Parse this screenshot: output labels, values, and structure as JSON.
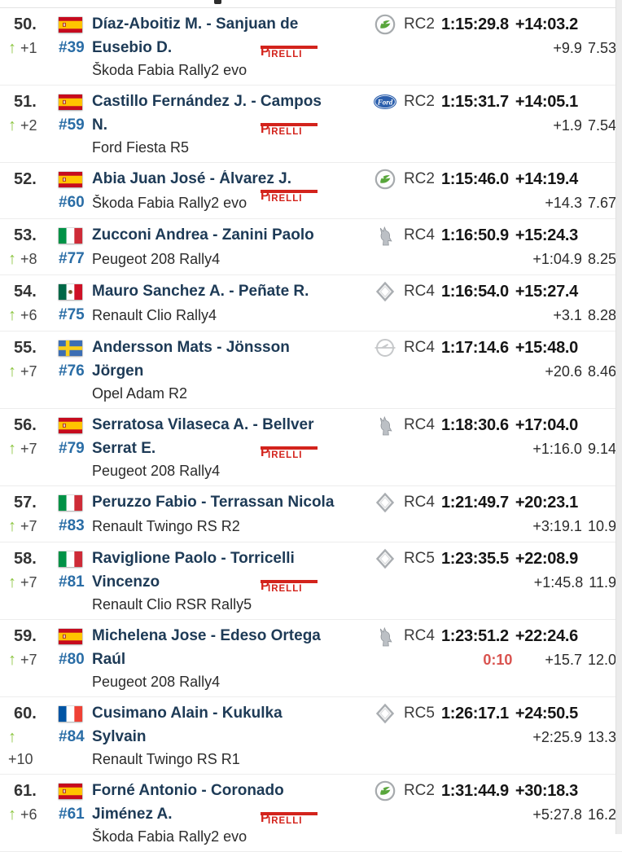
{
  "app": {
    "view": "rally-overall-results-list"
  },
  "icons": {
    "up_arrow": "↑",
    "tyre_brand": "PIRELLI"
  },
  "colors": {
    "driver_name": "#1d3a56",
    "car_number": "#2a6da6",
    "position_up_arrow": "#8cc540",
    "penalty": "#d9534f",
    "pirelli_red": "#d3231c",
    "time_text": "#161616",
    "divider": "#ededed"
  },
  "rows": [
    {
      "pos": "50.",
      "arrow": true,
      "change": "+1",
      "change_line": 2,
      "flag": "es",
      "num": "#39",
      "name1": "Díaz-Aboitiz M. - Sanjuan de",
      "name2": "Eusebio D.",
      "car": "Škoda Fabia Rally2 evo",
      "tyre": "pirelli",
      "make": "skoda",
      "cls": "RC2",
      "time": "1:15:29.8",
      "gap": "+14:03.2",
      "penalty": "",
      "gap_prev": "+9.9",
      "coef": "7.53"
    },
    {
      "pos": "51.",
      "arrow": true,
      "change": "+2",
      "change_line": 2,
      "flag": "es",
      "num": "#59",
      "name1": "Castillo Fernández J. - Campos",
      "name2": "N.",
      "car": "Ford Fiesta R5",
      "tyre": "pirelli",
      "make": "ford",
      "cls": "RC2",
      "time": "1:15:31.7",
      "gap": "+14:05.1",
      "penalty": "",
      "gap_prev": "+1.9",
      "coef": "7.54"
    },
    {
      "pos": "52.",
      "arrow": false,
      "change": "",
      "change_line": 2,
      "flag": "es",
      "num": "#60",
      "name1": "Abia Juan José - Álvarez J.",
      "name2": null,
      "car": "Škoda Fabia Rally2 evo",
      "tyre": "pirelli",
      "make": "skoda",
      "cls": "RC2",
      "time": "1:15:46.0",
      "gap": "+14:19.4",
      "penalty": "",
      "gap_prev": "+14.3",
      "coef": "7.67"
    },
    {
      "pos": "53.",
      "arrow": true,
      "change": "+8",
      "change_line": 2,
      "flag": "it",
      "num": "#77",
      "name1": "Zucconi Andrea - Zanini Paolo",
      "name2": null,
      "car": "Peugeot 208 Rally4",
      "tyre": null,
      "make": "peugeot",
      "cls": "RC4",
      "time": "1:16:50.9",
      "gap": "+15:24.3",
      "penalty": "",
      "gap_prev": "+1:04.9",
      "coef": "8.25"
    },
    {
      "pos": "54.",
      "arrow": true,
      "change": "+6",
      "change_line": 2,
      "flag": "mx",
      "num": "#75",
      "name1": "Mauro Sanchez A. - Peñate R.",
      "name2": null,
      "car": "Renault Clio Rally4",
      "tyre": null,
      "make": "renault",
      "cls": "RC4",
      "time": "1:16:54.0",
      "gap": "+15:27.4",
      "penalty": "",
      "gap_prev": "+3.1",
      "coef": "8.28"
    },
    {
      "pos": "55.",
      "arrow": true,
      "change": "+7",
      "change_line": 2,
      "flag": "se",
      "num": "#76",
      "name1": "Andersson Mats - Jönsson",
      "name2": "Jörgen",
      "car": "Opel Adam R2",
      "tyre": null,
      "make": "opel",
      "cls": "RC4",
      "time": "1:17:14.6",
      "gap": "+15:48.0",
      "penalty": "",
      "gap_prev": "+20.6",
      "coef": "8.46"
    },
    {
      "pos": "56.",
      "arrow": true,
      "change": "+7",
      "change_line": 2,
      "flag": "es",
      "num": "#79",
      "name1": "Serratosa Vilaseca A. - Bellver",
      "name2": "Serrat E.",
      "car": "Peugeot 208 Rally4",
      "tyre": "pirelli",
      "make": "peugeot",
      "cls": "RC4",
      "time": "1:18:30.6",
      "gap": "+17:04.0",
      "penalty": "",
      "gap_prev": "+1:16.0",
      "coef": "9.14"
    },
    {
      "pos": "57.",
      "arrow": true,
      "change": "+7",
      "change_line": 2,
      "flag": "it",
      "num": "#83",
      "name1": "Peruzzo Fabio - Terrassan Nicola",
      "name2": null,
      "car": "Renault Twingo RS R2",
      "tyre": null,
      "make": "renault",
      "cls": "RC4",
      "time": "1:21:49.7",
      "gap": "+20:23.1",
      "penalty": "",
      "gap_prev": "+3:19.1",
      "coef": "10.9"
    },
    {
      "pos": "58.",
      "arrow": true,
      "change": "+7",
      "change_line": 2,
      "flag": "it",
      "num": "#81",
      "name1": "Raviglione Paolo - Torricelli",
      "name2": "Vincenzo",
      "car": "Renault Clio RSR Rally5",
      "tyre": "pirelli",
      "make": "renault",
      "cls": "RC5",
      "time": "1:23:35.5",
      "gap": "+22:08.9",
      "penalty": "",
      "gap_prev": "+1:45.8",
      "coef": "11.9"
    },
    {
      "pos": "59.",
      "arrow": true,
      "change": "+7",
      "change_line": 2,
      "flag": "es",
      "num": "#80",
      "name1": "Michelena Jose - Edeso Ortega",
      "name2": "Raúl",
      "car": "Peugeot 208 Rally4",
      "tyre": null,
      "make": "peugeot",
      "cls": "RC4",
      "time": "1:23:51.2",
      "gap": "+22:24.6",
      "penalty": "0:10",
      "gap_prev": "+15.7",
      "coef": "12.0"
    },
    {
      "pos": "60.",
      "arrow": true,
      "change": "+10",
      "change_line": 3,
      "flag": "fr",
      "num": "#84",
      "name1": "Cusimano Alain - Kukulka",
      "name2": "Sylvain",
      "car": "Renault Twingo RS R1",
      "tyre": null,
      "make": "renault",
      "cls": "RC5",
      "time": "1:26:17.1",
      "gap": "+24:50.5",
      "penalty": "",
      "gap_prev": "+2:25.9",
      "coef": "13.3"
    },
    {
      "pos": "61.",
      "arrow": true,
      "change": "+6",
      "change_line": 2,
      "flag": "es",
      "num": "#61",
      "name1": "Forné Antonio - Coronado",
      "name2": "Jiménez A.",
      "car": "Škoda Fabia Rally2 evo",
      "tyre": "pirelli",
      "make": "skoda",
      "cls": "RC2",
      "time": "1:31:44.9",
      "gap": "+30:18.3",
      "penalty": "",
      "gap_prev": "+5:27.8",
      "coef": "16.2"
    }
  ]
}
